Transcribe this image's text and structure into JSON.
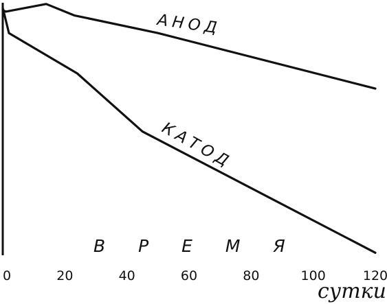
{
  "chart_data": {
    "type": "line",
    "title": "",
    "xlabel": "сутки",
    "ylabel": "",
    "xlim": [
      0,
      120
    ],
    "ylim": [
      0,
      100
    ],
    "x_ticks": [
      0,
      20,
      40,
      60,
      80,
      100,
      120
    ],
    "x_tick_labels": [
      "0",
      "20",
      "40",
      "60",
      "80",
      "100",
      "120"
    ],
    "grid": false,
    "annotation": "В Р Е М Я",
    "series": [
      {
        "name": "АНОД",
        "x": [
          0,
          1,
          14,
          23,
          50,
          120
        ],
        "y": [
          97,
          96.5,
          99.5,
          95,
          88,
          66
        ]
      },
      {
        "name": "КАТОД",
        "x": [
          0,
          2,
          24,
          45,
          120
        ],
        "y": [
          98,
          88,
          72,
          49,
          1
        ]
      }
    ]
  }
}
